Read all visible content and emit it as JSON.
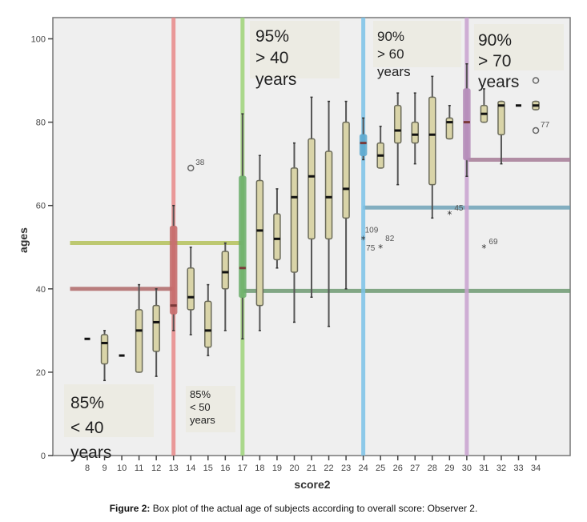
{
  "chart_data": {
    "type": "box",
    "title": "",
    "xlabel": "score2",
    "ylabel": "ages",
    "ylim": [
      0,
      105
    ],
    "xlim": [
      7,
      36
    ],
    "yticks": [
      0,
      20,
      40,
      60,
      80,
      100
    ],
    "xticks": [
      8,
      9,
      10,
      11,
      12,
      13,
      14,
      15,
      16,
      17,
      18,
      19,
      20,
      21,
      22,
      23,
      24,
      25,
      26,
      27,
      28,
      29,
      30,
      31,
      32,
      33,
      34
    ],
    "grid": false,
    "colors": {
      "plot_bg": "#efefef",
      "box_fill": "#d9d4a8",
      "box_stroke": "#6b6b5a",
      "whisker": "#555555",
      "red": "#e88a8a",
      "green_light": "#9ed47a",
      "green_dark": "#5fa860",
      "blue": "#7cc3e8",
      "purple": "#c9a2d0",
      "olive": "#b5c25a",
      "maroon": "#b06a6a",
      "teal_line": "#6fa3b8",
      "darkgreen_line": "#6e9a72",
      "mauve_line": "#a77d98",
      "label_box": "#ecebe3"
    },
    "boxes": [
      {
        "score": 8,
        "type": "single",
        "median": 28
      },
      {
        "score": 9,
        "min": 18,
        "q1": 22,
        "median": 27,
        "q3": 29,
        "max": 30
      },
      {
        "score": 10,
        "type": "single",
        "median": 24
      },
      {
        "score": 11,
        "min": 20,
        "q1": 20,
        "median": 30,
        "q3": 35,
        "max": 41
      },
      {
        "score": 12,
        "min": 19,
        "q1": 25,
        "median": 32,
        "q3": 36,
        "max": 40
      },
      {
        "score": 13,
        "min": 30,
        "q1": 34,
        "median": 36,
        "q3": 55,
        "max": 60,
        "color": "red"
      },
      {
        "score": 14,
        "min": 29,
        "q1": 35,
        "median": 38,
        "q3": 45,
        "max": 50
      },
      {
        "score": 15,
        "min": 24,
        "q1": 26,
        "median": 30,
        "q3": 37,
        "max": 41
      },
      {
        "score": 16,
        "min": 30,
        "q1": 40,
        "median": 44,
        "q3": 49,
        "max": 51
      },
      {
        "score": 17,
        "min": 28,
        "q1": 38,
        "median": 45,
        "q3": 67,
        "max": 82,
        "color": "green"
      },
      {
        "score": 18,
        "min": 30,
        "q1": 36,
        "median": 54,
        "q3": 66,
        "max": 72
      },
      {
        "score": 19,
        "min": 45,
        "q1": 47,
        "median": 52,
        "q3": 58,
        "max": 64
      },
      {
        "score": 20,
        "min": 32,
        "q1": 44,
        "median": 62,
        "q3": 69,
        "max": 75
      },
      {
        "score": 21,
        "min": 38,
        "q1": 52,
        "median": 67,
        "q3": 76,
        "max": 86
      },
      {
        "score": 22,
        "min": 31,
        "q1": 52,
        "median": 62,
        "q3": 73,
        "max": 85
      },
      {
        "score": 23,
        "min": 40,
        "q1": 57,
        "median": 64,
        "q3": 80,
        "max": 85
      },
      {
        "score": 24,
        "min": 71,
        "q1": 72,
        "median": 75,
        "q3": 77,
        "max": 81,
        "color": "blue"
      },
      {
        "score": 25,
        "min": 69,
        "q1": 69,
        "median": 72,
        "q3": 75,
        "max": 79
      },
      {
        "score": 26,
        "min": 65,
        "q1": 75,
        "median": 78,
        "q3": 84,
        "max": 87
      },
      {
        "score": 27,
        "min": 70,
        "q1": 75,
        "median": 77,
        "q3": 80,
        "max": 87
      },
      {
        "score": 28,
        "min": 57,
        "q1": 65,
        "median": 77,
        "q3": 86,
        "max": 91
      },
      {
        "score": 29,
        "min": 76,
        "q1": 76,
        "median": 80,
        "q3": 81,
        "max": 84
      },
      {
        "score": 30,
        "min": 67,
        "q1": 71,
        "median": 80,
        "q3": 88,
        "max": 94,
        "color": "purple"
      },
      {
        "score": 31,
        "min": 80,
        "q1": 80,
        "median": 82,
        "q3": 84,
        "max": 88
      },
      {
        "score": 32,
        "min": 70,
        "q1": 77,
        "median": 84,
        "q3": 85,
        "max": 85
      },
      {
        "score": 33,
        "type": "single",
        "median": 84
      },
      {
        "score": 34,
        "min": 83,
        "q1": 83,
        "median": 84,
        "q3": 85,
        "max": 85
      }
    ],
    "outliers": [
      {
        "score": 14,
        "value": 69,
        "marker": "circle",
        "label": "38"
      },
      {
        "score": 24,
        "value": 52,
        "marker": "star",
        "label": "109"
      },
      {
        "score": 25,
        "value": 50,
        "marker": "star",
        "label": "75"
      },
      {
        "score": 25,
        "value": 50,
        "marker": "none",
        "label": "82"
      },
      {
        "score": 29,
        "value": 58,
        "marker": "star",
        "label": "45"
      },
      {
        "score": 31,
        "value": 50,
        "marker": "star",
        "label": "69"
      },
      {
        "score": 34,
        "value": 90,
        "marker": "circle",
        "label": ""
      },
      {
        "score": 34,
        "value": 78,
        "marker": "circle",
        "label": "77"
      }
    ],
    "vertical_lines": [
      {
        "score": 13,
        "color": "red"
      },
      {
        "score": 17,
        "color": "green_light"
      },
      {
        "score": 24,
        "color": "blue"
      },
      {
        "score": 30,
        "color": "purple"
      }
    ],
    "horizontal_lines": [
      {
        "value": 40,
        "from": 7,
        "to": 13,
        "color": "maroon"
      },
      {
        "value": 51,
        "from": 7,
        "to": 17,
        "color": "olive"
      },
      {
        "value": 39.5,
        "from": 17,
        "to": 36,
        "color": "darkgreen_line"
      },
      {
        "value": 59.5,
        "from": 24,
        "to": 36,
        "color": "teal_line"
      },
      {
        "value": 71,
        "from": 30,
        "to": 36,
        "color": "mauve_line"
      }
    ],
    "annotations": [
      {
        "lines": [
          "85%",
          "< 40",
          "years"
        ],
        "position": "bottom-left",
        "size": "large"
      },
      {
        "lines": [
          "85%",
          "< 50",
          "years"
        ],
        "position": "bottom-between-13-17",
        "size": "small"
      },
      {
        "lines": [
          "95%",
          "> 40",
          "years"
        ],
        "position": "top-between-17-24",
        "size": "large"
      },
      {
        "lines": [
          "90%",
          "> 60",
          "years"
        ],
        "position": "top-between-24-30",
        "size": "medium"
      },
      {
        "lines": [
          "90%",
          "> 70",
          "years"
        ],
        "position": "top-right",
        "size": "large"
      }
    ]
  },
  "caption": {
    "label": "Figure 2:",
    "text": " Box plot of the actual age of subjects according to overall score: Observer 2."
  }
}
